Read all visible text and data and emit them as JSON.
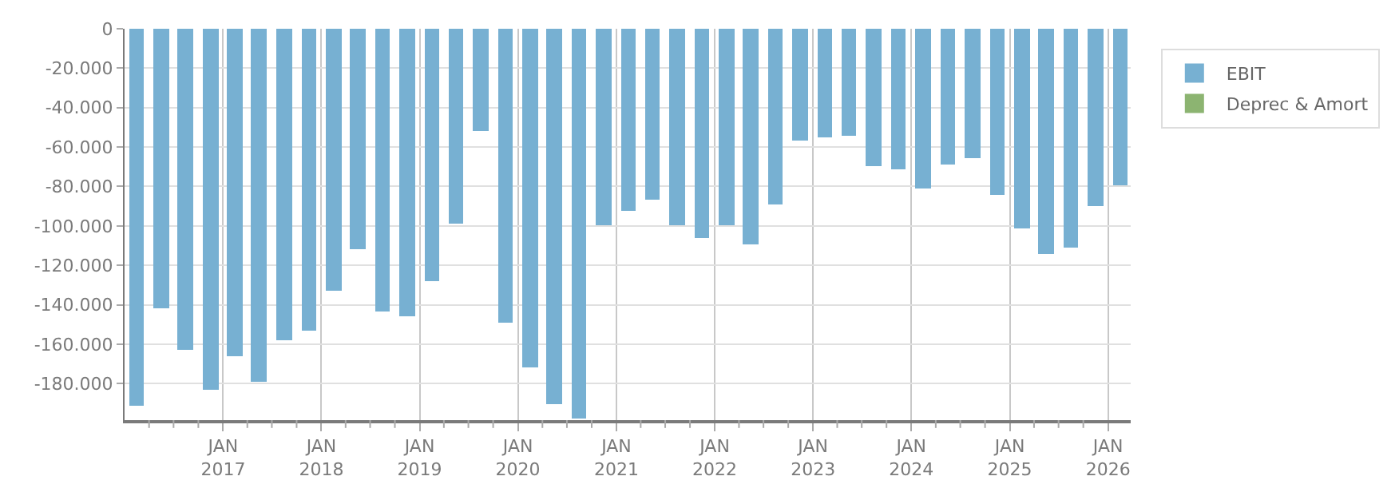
{
  "chart_data": {
    "type": "bar",
    "stacked": true,
    "x": [
      "2016-02-15",
      "2016-05-15",
      "2016-08-15",
      "2016-11-15",
      "2017-02-15",
      "2017-05-15",
      "2017-08-15",
      "2017-11-15",
      "2018-02-15",
      "2018-05-15",
      "2018-08-15",
      "2018-11-15",
      "2019-02-15",
      "2019-05-15",
      "2019-08-15",
      "2019-11-15",
      "2020-02-15",
      "2020-05-15",
      "2020-08-15",
      "2020-11-15",
      "2021-02-15",
      "2021-05-15",
      "2021-08-15",
      "2021-11-15",
      "2022-02-15",
      "2022-05-15",
      "2022-08-15",
      "2022-11-15",
      "2023-02-15",
      "2023-05-15",
      "2023-08-15",
      "2023-11-15",
      "2024-02-15",
      "2024-05-15",
      "2024-08-15",
      "2024-11-15",
      "2025-02-15",
      "2025-05-15",
      "2025-08-15",
      "2025-11-15",
      "2026-02-15"
    ],
    "series": [
      {
        "name": "EBIT",
        "color": "#77b0d2",
        "values": [
          -191000,
          -142000,
          -163000,
          -183000,
          -166000,
          -179000,
          -158000,
          -153000,
          -133000,
          -112000,
          -143000,
          -146000,
          -128000,
          -99000,
          -52000,
          -149000,
          -172000,
          -190000,
          -198000,
          -100000,
          -92000,
          -87000,
          -100000,
          -106000,
          -100000,
          -109000,
          -89000,
          -57000,
          -55000,
          -54000,
          -70000,
          -71000,
          -81000,
          -69000,
          -66000,
          -84000,
          -101000,
          -114000,
          -111000,
          -90000,
          -79000
        ]
      },
      {
        "name": "Deprec & Amort",
        "color": "#8cb471",
        "values": [
          null,
          null,
          null,
          null,
          null,
          null,
          null,
          null,
          null,
          null,
          null,
          null,
          null,
          null,
          null,
          null,
          null,
          null,
          null,
          null,
          null,
          null,
          null,
          null,
          null,
          null,
          null,
          null,
          null,
          null,
          null,
          null,
          null,
          null,
          null,
          null,
          null,
          null,
          null,
          null,
          null
        ]
      }
    ],
    "xlim": [
      "2016-01-01",
      "2026-03-26"
    ],
    "xticks": [
      {
        "value": "2016-04-01",
        "label": null
      },
      {
        "value": "2016-07-01",
        "label": null
      },
      {
        "value": "2016-10-01",
        "label": null
      },
      {
        "value": "2017-01-01",
        "label": "JAN\n2017"
      },
      {
        "value": "2017-04-01",
        "label": null
      },
      {
        "value": "2017-07-01",
        "label": null
      },
      {
        "value": "2017-10-01",
        "label": null
      },
      {
        "value": "2018-01-01",
        "label": "JAN\n2018"
      },
      {
        "value": "2018-04-01",
        "label": null
      },
      {
        "value": "2018-07-01",
        "label": null
      },
      {
        "value": "2018-10-01",
        "label": null
      },
      {
        "value": "2019-01-01",
        "label": "JAN\n2019"
      },
      {
        "value": "2019-04-01",
        "label": null
      },
      {
        "value": "2019-07-01",
        "label": null
      },
      {
        "value": "2019-10-01",
        "label": null
      },
      {
        "value": "2020-01-01",
        "label": "JAN\n2020"
      },
      {
        "value": "2020-04-01",
        "label": null
      },
      {
        "value": "2020-07-01",
        "label": null
      },
      {
        "value": "2020-10-01",
        "label": null
      },
      {
        "value": "2021-01-01",
        "label": "JAN\n2021"
      },
      {
        "value": "2021-04-01",
        "label": null
      },
      {
        "value": "2021-07-01",
        "label": null
      },
      {
        "value": "2021-10-01",
        "label": null
      },
      {
        "value": "2022-01-01",
        "label": "JAN\n2022"
      },
      {
        "value": "2022-04-01",
        "label": null
      },
      {
        "value": "2022-07-01",
        "label": null
      },
      {
        "value": "2022-10-01",
        "label": null
      },
      {
        "value": "2023-01-01",
        "label": "JAN\n2023"
      },
      {
        "value": "2023-04-01",
        "label": null
      },
      {
        "value": "2023-07-01",
        "label": null
      },
      {
        "value": "2023-10-01",
        "label": null
      },
      {
        "value": "2024-01-01",
        "label": "JAN\n2024"
      },
      {
        "value": "2024-04-01",
        "label": null
      },
      {
        "value": "2024-07-01",
        "label": null
      },
      {
        "value": "2024-10-01",
        "label": null
      },
      {
        "value": "2025-01-01",
        "label": "JAN\n2025"
      },
      {
        "value": "2025-04-01",
        "label": null
      },
      {
        "value": "2025-07-01",
        "label": null
      },
      {
        "value": "2025-10-01",
        "label": null
      },
      {
        "value": "2026-01-01",
        "label": "JAN\n2026"
      }
    ],
    "ylim": [
      -198500,
      0
    ],
    "yticks": [
      {
        "value": 0,
        "label": "0"
      },
      {
        "value": -20000,
        "label": "-20.000"
      },
      {
        "value": -40000,
        "label": "-40.000"
      },
      {
        "value": -60000,
        "label": "-60.000"
      },
      {
        "value": -80000,
        "label": "-80.000"
      },
      {
        "value": -100000,
        "label": "-100.000"
      },
      {
        "value": -120000,
        "label": "-120.000"
      },
      {
        "value": -140000,
        "label": "-140.000"
      },
      {
        "value": -160000,
        "label": "-160.000"
      },
      {
        "value": -180000,
        "label": "-180.000"
      }
    ],
    "grid": true,
    "legend": "top right"
  }
}
